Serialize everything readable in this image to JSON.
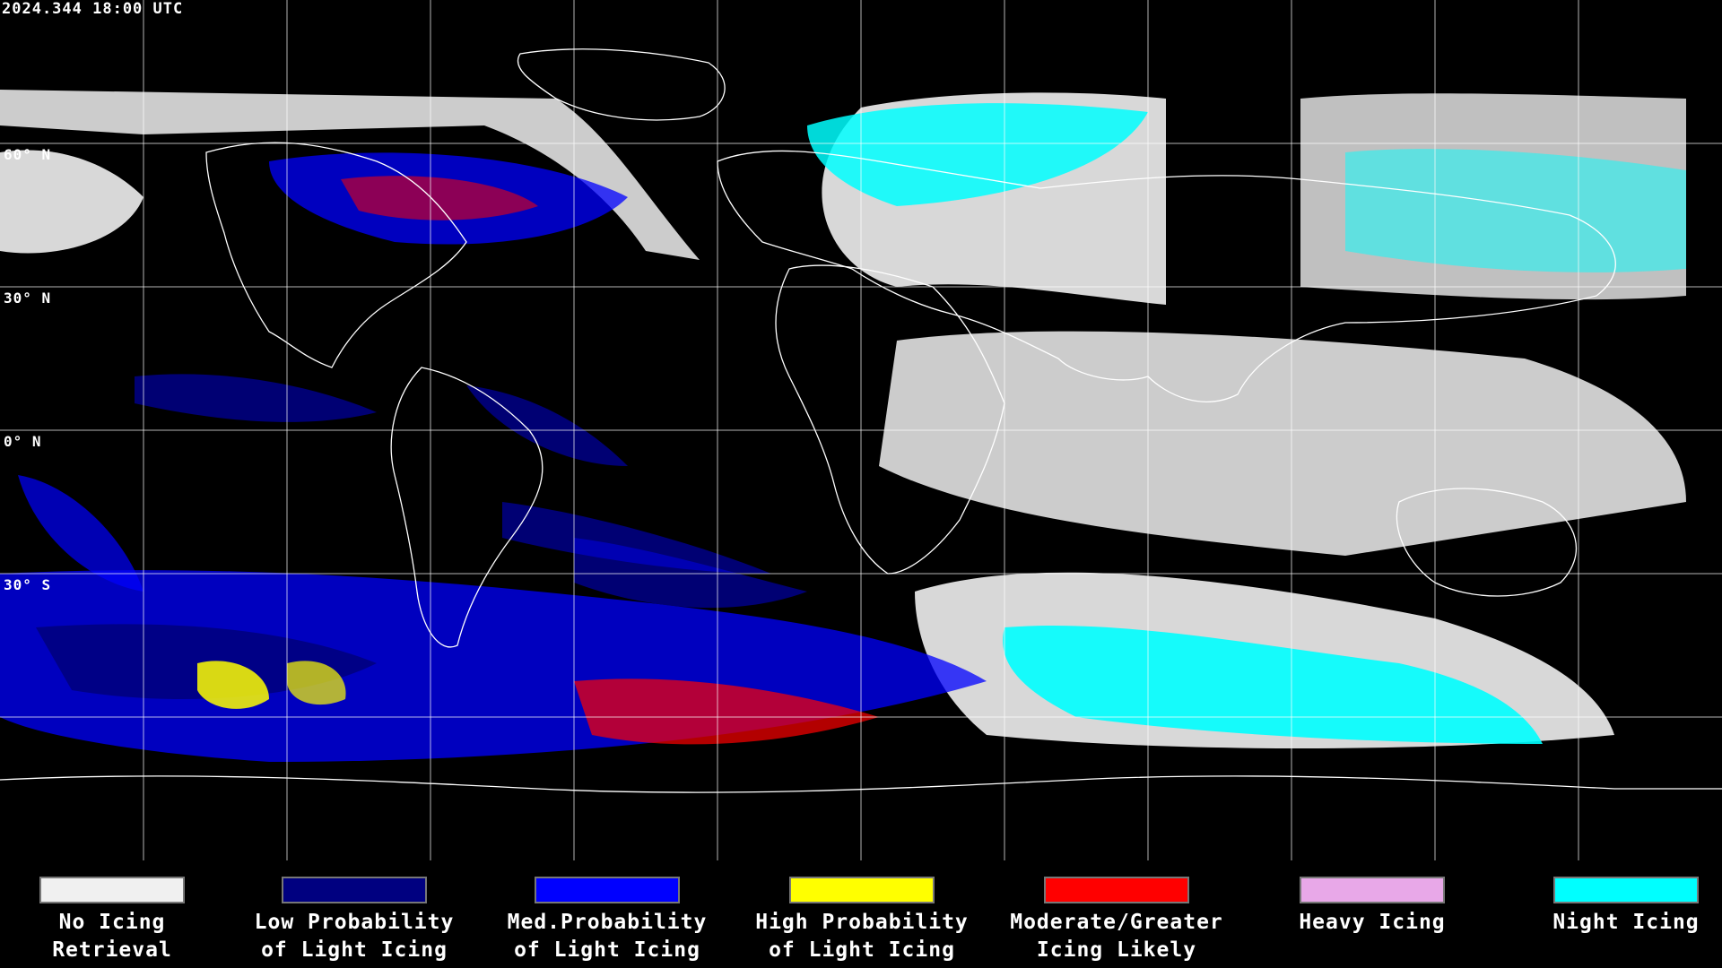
{
  "timestamp": "2024.344 18:00 UTC",
  "latitude_labels": [
    "60° N",
    "30° N",
    "0° N",
    "30° S"
  ],
  "legend": [
    {
      "label": "No Icing\nRetrieval",
      "color": "#f0f0f0"
    },
    {
      "label": "Low Probability\nof Light Icing",
      "color": "#000080"
    },
    {
      "label": "Med.Probability\nof Light Icing",
      "color": "#0000ff"
    },
    {
      "label": "High Probability\nof Light Icing",
      "color": "#ffff00"
    },
    {
      "label": "Moderate/Greater\nIcing Likely",
      "color": "#ff0000"
    },
    {
      "label": "Heavy Icing",
      "color": "#e8a8e8"
    },
    {
      "label": "Night Icing",
      "color": "#00ffff"
    }
  ],
  "colors": {
    "background": "#000000",
    "grid": "#ffffff",
    "coastline": "#ffffff"
  }
}
